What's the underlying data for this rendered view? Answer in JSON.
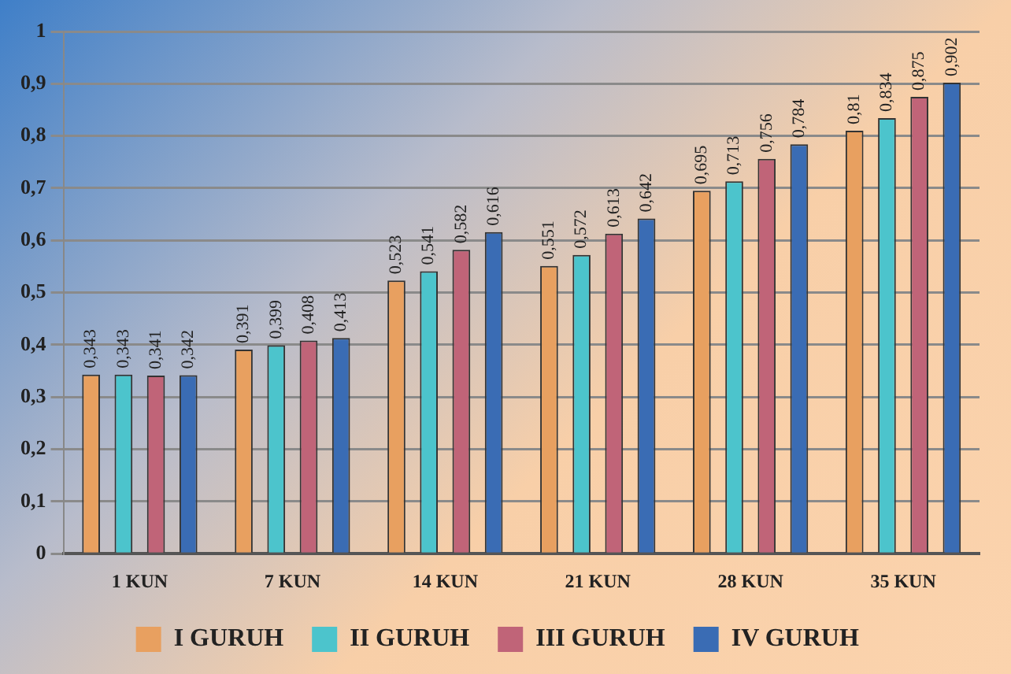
{
  "chart_data": {
    "type": "bar",
    "categories": [
      "1 KUN",
      "7 KUN",
      "14 KUN",
      "21 KUN",
      "28 KUN",
      "35 KUN"
    ],
    "series": [
      {
        "name": "I GURUH",
        "color": "#e8a060",
        "values": [
          0.343,
          0.391,
          0.523,
          0.551,
          0.695,
          0.81
        ],
        "value_labels": [
          "0,343",
          "0,391",
          "0,523",
          "0,551",
          "0,695",
          "0,81"
        ]
      },
      {
        "name": "II GURUH",
        "color": "#4cc4cc",
        "values": [
          0.343,
          0.399,
          0.541,
          0.572,
          0.713,
          0.834
        ],
        "value_labels": [
          "0,343",
          "0,399",
          "0,541",
          "0,572",
          "0,713",
          "0,834"
        ]
      },
      {
        "name": "III GURUH",
        "color": "#c06478",
        "values": [
          0.341,
          0.408,
          0.582,
          0.613,
          0.756,
          0.875
        ],
        "value_labels": [
          "0,341",
          "0,408",
          "0,582",
          "0,613",
          "0,756",
          "0,875"
        ]
      },
      {
        "name": "IV GURUH",
        "color": "#3a6cb4",
        "values": [
          0.342,
          0.413,
          0.616,
          0.642,
          0.784,
          0.902
        ],
        "value_labels": [
          "0,342",
          "0,413",
          "0,616",
          "0,642",
          "0,784",
          "0,902"
        ]
      }
    ],
    "ylim": [
      0,
      1
    ],
    "yticks": [
      0,
      {
        "value": 0.1,
        "label": "0,1"
      },
      {
        "value": 0.2,
        "label": "0,2"
      },
      {
        "value": 0.3,
        "label": "0,3"
      },
      {
        "value": 0.4,
        "label": "0,4"
      },
      {
        "value": 0.5,
        "label": "0,5"
      },
      {
        "value": 0.6,
        "label": "0,6"
      },
      {
        "value": 0.7,
        "label": "0,7"
      },
      {
        "value": 0.8,
        "label": "0,8"
      },
      {
        "value": 0.9,
        "label": "0,9"
      },
      1
    ],
    "grid": "y",
    "legend": "bottom"
  }
}
